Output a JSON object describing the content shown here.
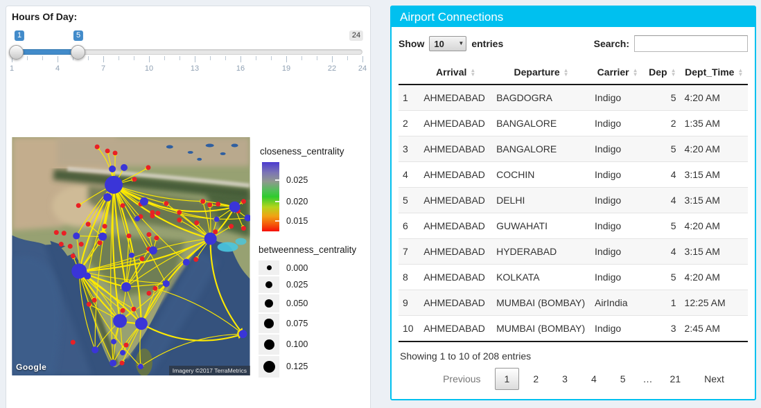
{
  "slider": {
    "label": "Hours Of Day:",
    "min": 1,
    "max": 24,
    "from": 1,
    "to": 5,
    "from_label": "1",
    "to_label": "5",
    "max_label": "24",
    "grid_labels": [
      "1",
      "4",
      "7",
      "10",
      "13",
      "16",
      "19",
      "22",
      "24"
    ],
    "accent": "#428bca"
  },
  "map": {
    "attribution_left": "Google",
    "attribution_right": "Imagery ©2017 TerraMetrics",
    "legend_closeness": {
      "title": "closeness_centrality",
      "ticks": [
        {
          "label": "0.025",
          "offset": 25
        },
        {
          "label": "0.020",
          "offset": 56
        },
        {
          "label": "0.015",
          "offset": 84
        }
      ]
    },
    "legend_betweenness": {
      "title": "betweenness_centrality",
      "items": [
        {
          "label": "0.000",
          "r": 3.5
        },
        {
          "label": "0.025",
          "r": 5
        },
        {
          "label": "0.050",
          "r": 6
        },
        {
          "label": "0.075",
          "r": 6.8
        },
        {
          "label": "0.100",
          "r": 7.5
        },
        {
          "label": "0.125",
          "r": 8.5
        }
      ]
    },
    "network": {
      "node_color_high": "#3a35d8",
      "node_color_low": "#e92025",
      "edge_color": "#ffea00",
      "blue_nodes": [
        [
          147,
          69,
          13
        ],
        [
          97,
          194,
          11
        ],
        [
          287,
          147,
          9
        ],
        [
          322,
          101,
          8
        ],
        [
          156,
          266,
          10
        ],
        [
          187,
          270,
          9
        ],
        [
          165,
          217,
          7
        ],
        [
          131,
          144,
          6
        ],
        [
          334,
          285,
          6
        ],
        [
          109,
          201,
          5
        ],
        [
          204,
          164,
          6
        ],
        [
          138,
          87,
          6
        ],
        [
          191,
          93,
          6
        ],
        [
          145,
          46,
          5
        ],
        [
          162,
          44,
          5
        ],
        [
          120,
          308,
          5
        ],
        [
          146,
          327,
          5
        ],
        [
          160,
          312,
          4
        ],
        [
          147,
          296,
          4
        ],
        [
          93,
          143,
          5
        ],
        [
          223,
          212,
          5
        ],
        [
          252,
          181,
          5
        ],
        [
          296,
          119,
          4
        ],
        [
          341,
          117,
          5
        ],
        [
          186,
          332,
          4
        ],
        [
          181,
          118,
          4
        ],
        [
          173,
          171,
          4
        ]
      ],
      "red_nodes": [
        [
          123,
          14
        ],
        [
          138,
          20
        ],
        [
          149,
          23
        ],
        [
          197,
          44
        ],
        [
          177,
          61
        ],
        [
          96,
          99
        ],
        [
          110,
          126
        ],
        [
          75,
          139
        ],
        [
          64,
          138
        ],
        [
          71,
          155
        ],
        [
          84,
          158
        ],
        [
          100,
          155
        ],
        [
          88,
          172
        ],
        [
          134,
          129
        ],
        [
          127,
          153
        ],
        [
          160,
          99
        ],
        [
          186,
          97
        ],
        [
          203,
          109
        ],
        [
          211,
          110
        ],
        [
          223,
          96
        ],
        [
          242,
          109
        ],
        [
          242,
          120
        ],
        [
          267,
          124
        ],
        [
          276,
          93
        ],
        [
          286,
          98
        ],
        [
          335,
          93
        ],
        [
          327,
          107
        ],
        [
          317,
          129
        ],
        [
          335,
          132
        ],
        [
          294,
          137
        ],
        [
          203,
          114
        ],
        [
          186,
          115
        ],
        [
          198,
          141
        ],
        [
          209,
          146
        ],
        [
          169,
          143
        ],
        [
          198,
          162
        ],
        [
          188,
          176
        ],
        [
          207,
          219
        ],
        [
          198,
          226
        ],
        [
          176,
          249
        ],
        [
          119,
          236
        ],
        [
          111,
          242
        ],
        [
          88,
          297
        ],
        [
          165,
          301
        ],
        [
          160,
          251
        ],
        [
          266,
          177
        ],
        [
          298,
          97
        ],
        [
          159,
          327
        ]
      ],
      "edges": [
        [
          0,
          1,
          0.08,
          2
        ],
        [
          0,
          2,
          0.12,
          2
        ],
        [
          0,
          3,
          0.22,
          2
        ],
        [
          0,
          4,
          0.05,
          2
        ],
        [
          0,
          5,
          -0.08,
          2
        ],
        [
          0,
          6,
          0.03,
          2
        ],
        [
          0,
          7,
          0.05,
          2
        ],
        [
          1,
          4,
          0.06,
          2
        ],
        [
          1,
          5,
          -0.05,
          2
        ],
        [
          1,
          6,
          0.04,
          2
        ],
        [
          1,
          2,
          0.1,
          2
        ],
        [
          2,
          3,
          0.08,
          2
        ],
        [
          2,
          5,
          0.12,
          2
        ],
        [
          2,
          8,
          0.18,
          2
        ],
        [
          4,
          5,
          0.05,
          2
        ],
        [
          4,
          6,
          0.04,
          1
        ],
        [
          5,
          6,
          -0.05,
          1
        ],
        [
          5,
          8,
          0.22,
          2
        ],
        [
          2,
          6,
          0.06,
          1
        ],
        [
          3,
          23,
          0.1,
          1
        ],
        [
          1,
          7,
          0.05,
          1
        ],
        [
          0,
          10,
          0.04,
          1
        ],
        [
          2,
          20,
          0.08,
          1
        ],
        [
          0,
          23,
          0.18,
          1
        ],
        [
          0,
          22,
          0.1,
          1
        ],
        [
          0,
          11,
          0,
          1
        ],
        [
          0,
          12,
          0,
          1
        ],
        [
          0,
          13,
          0.05,
          1
        ],
        [
          0,
          14,
          0.05,
          1
        ],
        [
          0,
          19,
          0.06,
          1
        ],
        [
          0,
          20,
          0,
          1
        ],
        [
          0,
          21,
          0.05,
          1
        ],
        [
          0,
          25,
          0,
          1
        ],
        [
          0,
          26,
          0,
          1
        ],
        [
          0,
          27,
          0.15,
          1
        ],
        [
          0,
          28,
          0.03,
          1
        ],
        [
          0,
          29,
          0.03,
          1
        ],
        [
          0,
          30,
          0.04,
          1
        ],
        [
          0,
          31,
          0,
          1
        ],
        [
          0,
          40,
          0,
          1
        ],
        [
          0,
          41,
          0.03,
          1
        ],
        [
          0,
          42,
          0,
          1
        ],
        [
          0,
          43,
          0,
          1
        ],
        [
          0,
          46,
          0.05,
          1
        ],
        [
          0,
          50,
          0.08,
          1
        ],
        [
          0,
          9,
          0.04,
          1
        ],
        [
          0,
          15,
          0.06,
          1
        ],
        [
          0,
          16,
          0.03,
          1
        ],
        [
          0,
          33,
          0.02,
          1
        ],
        [
          0,
          32,
          0.03,
          1
        ],
        [
          1,
          9,
          0,
          1
        ],
        [
          1,
          19,
          0.05,
          1
        ],
        [
          1,
          39,
          0,
          1
        ],
        [
          1,
          41,
          0,
          1
        ],
        [
          1,
          40,
          0.04,
          1
        ],
        [
          1,
          10,
          0.05,
          1
        ],
        [
          1,
          20,
          0.04,
          1
        ],
        [
          1,
          15,
          0.08,
          1
        ],
        [
          1,
          16,
          0.05,
          1
        ],
        [
          1,
          24,
          0.1,
          1
        ],
        [
          1,
          67,
          0.03,
          1
        ],
        [
          1,
          66,
          0.05,
          1
        ],
        [
          1,
          71,
          0.04,
          1
        ],
        [
          1,
          63,
          0.03,
          1
        ],
        [
          2,
          46,
          0,
          1
        ],
        [
          2,
          47,
          0,
          1
        ],
        [
          2,
          48,
          0.03,
          1
        ],
        [
          2,
          49,
          0,
          1
        ],
        [
          2,
          50,
          0.04,
          1
        ],
        [
          2,
          51,
          0.03,
          1
        ],
        [
          2,
          56,
          0,
          1
        ],
        [
          2,
          22,
          0.05,
          1
        ],
        [
          2,
          54,
          0,
          1
        ],
        [
          2,
          64,
          0.05,
          1
        ],
        [
          2,
          72,
          0.03,
          1
        ],
        [
          2,
          10,
          0.05,
          1
        ],
        [
          3,
          50,
          0.05,
          1
        ],
        [
          3,
          51,
          0,
          1
        ],
        [
          3,
          52,
          0.04,
          1
        ],
        [
          3,
          53,
          0,
          1
        ],
        [
          3,
          55,
          0.03,
          1
        ],
        [
          3,
          22,
          0,
          1
        ],
        [
          3,
          73,
          0,
          1
        ],
        [
          4,
          15,
          0.05,
          1
        ],
        [
          4,
          16,
          0.04,
          1
        ],
        [
          4,
          17,
          0,
          1
        ],
        [
          4,
          18,
          0,
          1
        ],
        [
          4,
          66,
          0.04,
          1
        ],
        [
          4,
          68,
          0.03,
          1
        ],
        [
          4,
          20,
          0.05,
          1
        ],
        [
          4,
          9,
          0.04,
          1
        ],
        [
          5,
          16,
          0.06,
          1
        ],
        [
          5,
          17,
          0.03,
          1
        ],
        [
          5,
          24,
          0.05,
          1
        ],
        [
          5,
          74,
          0,
          1
        ],
        [
          5,
          64,
          0.04,
          1
        ],
        [
          5,
          20,
          0.03,
          1
        ],
        [
          6,
          20,
          0,
          1
        ],
        [
          6,
          26,
          0,
          1
        ],
        [
          6,
          63,
          0.03,
          1
        ],
        [
          6,
          62,
          0,
          1
        ],
        [
          6,
          10,
          0.04,
          1
        ],
        [
          6,
          61,
          0,
          1
        ],
        [
          7,
          19,
          0,
          1
        ],
        [
          7,
          33,
          0,
          1
        ],
        [
          7,
          40,
          0.03,
          1
        ],
        [
          7,
          41,
          0,
          1
        ],
        [
          10,
          59,
          0,
          1
        ],
        [
          10,
          60,
          0,
          1
        ],
        [
          8,
          24,
          0.15,
          1
        ],
        [
          8,
          64,
          0.1,
          1
        ]
      ]
    }
  },
  "panel": {
    "title": "Airport Connections",
    "accent": "#00c0ef",
    "show_label": "Show",
    "page_length": "10",
    "entries_label": "entries",
    "search_label": "Search:",
    "search_value": "",
    "columns": [
      {
        "label": "",
        "sortable": false
      },
      {
        "label": "Arrival",
        "sortable": true
      },
      {
        "label": "Departure",
        "sortable": true
      },
      {
        "label": "Carrier",
        "sortable": true
      },
      {
        "label": "Dep",
        "sortable": true
      },
      {
        "label": "Dept_Time",
        "sortable": true
      }
    ],
    "rows": [
      [
        "1",
        "AHMEDABAD",
        "BAGDOGRA",
        "Indigo",
        "5",
        "4:20 AM"
      ],
      [
        "2",
        "AHMEDABAD",
        "BANGALORE",
        "Indigo",
        "2",
        "1:35 AM"
      ],
      [
        "3",
        "AHMEDABAD",
        "BANGALORE",
        "Indigo",
        "5",
        "4:20 AM"
      ],
      [
        "4",
        "AHMEDABAD",
        "COCHIN",
        "Indigo",
        "4",
        "3:15 AM"
      ],
      [
        "5",
        "AHMEDABAD",
        "DELHI",
        "Indigo",
        "4",
        "3:15 AM"
      ],
      [
        "6",
        "AHMEDABAD",
        "GUWAHATI",
        "Indigo",
        "5",
        "4:20 AM"
      ],
      [
        "7",
        "AHMEDABAD",
        "HYDERABAD",
        "Indigo",
        "4",
        "3:15 AM"
      ],
      [
        "8",
        "AHMEDABAD",
        "KOLKATA",
        "Indigo",
        "5",
        "4:20 AM"
      ],
      [
        "9",
        "AHMEDABAD",
        "MUMBAI (BOMBAY)",
        "AirIndia",
        "1",
        "12:25 AM"
      ],
      [
        "10",
        "AHMEDABAD",
        "MUMBAI (BOMBAY)",
        "Indigo",
        "3",
        "2:45 AM"
      ]
    ],
    "info": "Showing 1 to 10 of 208 entries",
    "pagination": {
      "previous": "Previous",
      "pages": [
        "1",
        "2",
        "3",
        "4",
        "5",
        "…",
        "21"
      ],
      "current": "1",
      "next": "Next"
    }
  }
}
